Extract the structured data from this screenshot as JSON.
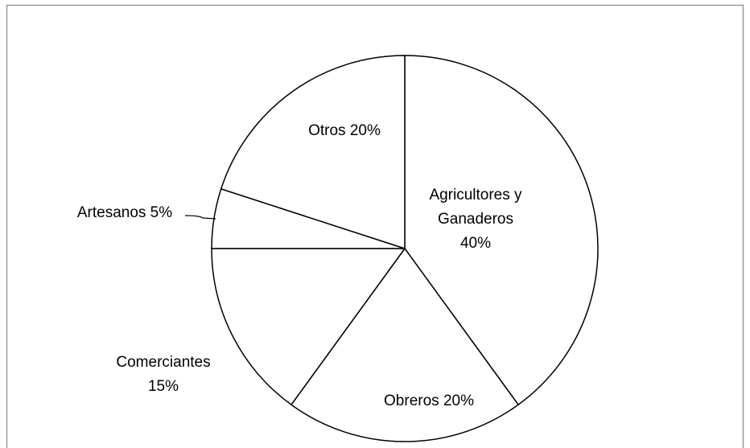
{
  "chart_data": {
    "type": "pie",
    "categories": [
      "Agricultores y Ganaderos",
      "Obreros",
      "Comerciantes",
      "Artesanos",
      "Otros"
    ],
    "values": [
      40,
      20,
      15,
      5,
      20
    ],
    "value_labels": [
      "40%",
      "20%",
      "15%",
      "5%",
      "20%"
    ],
    "color": "#ffffff"
  }
}
